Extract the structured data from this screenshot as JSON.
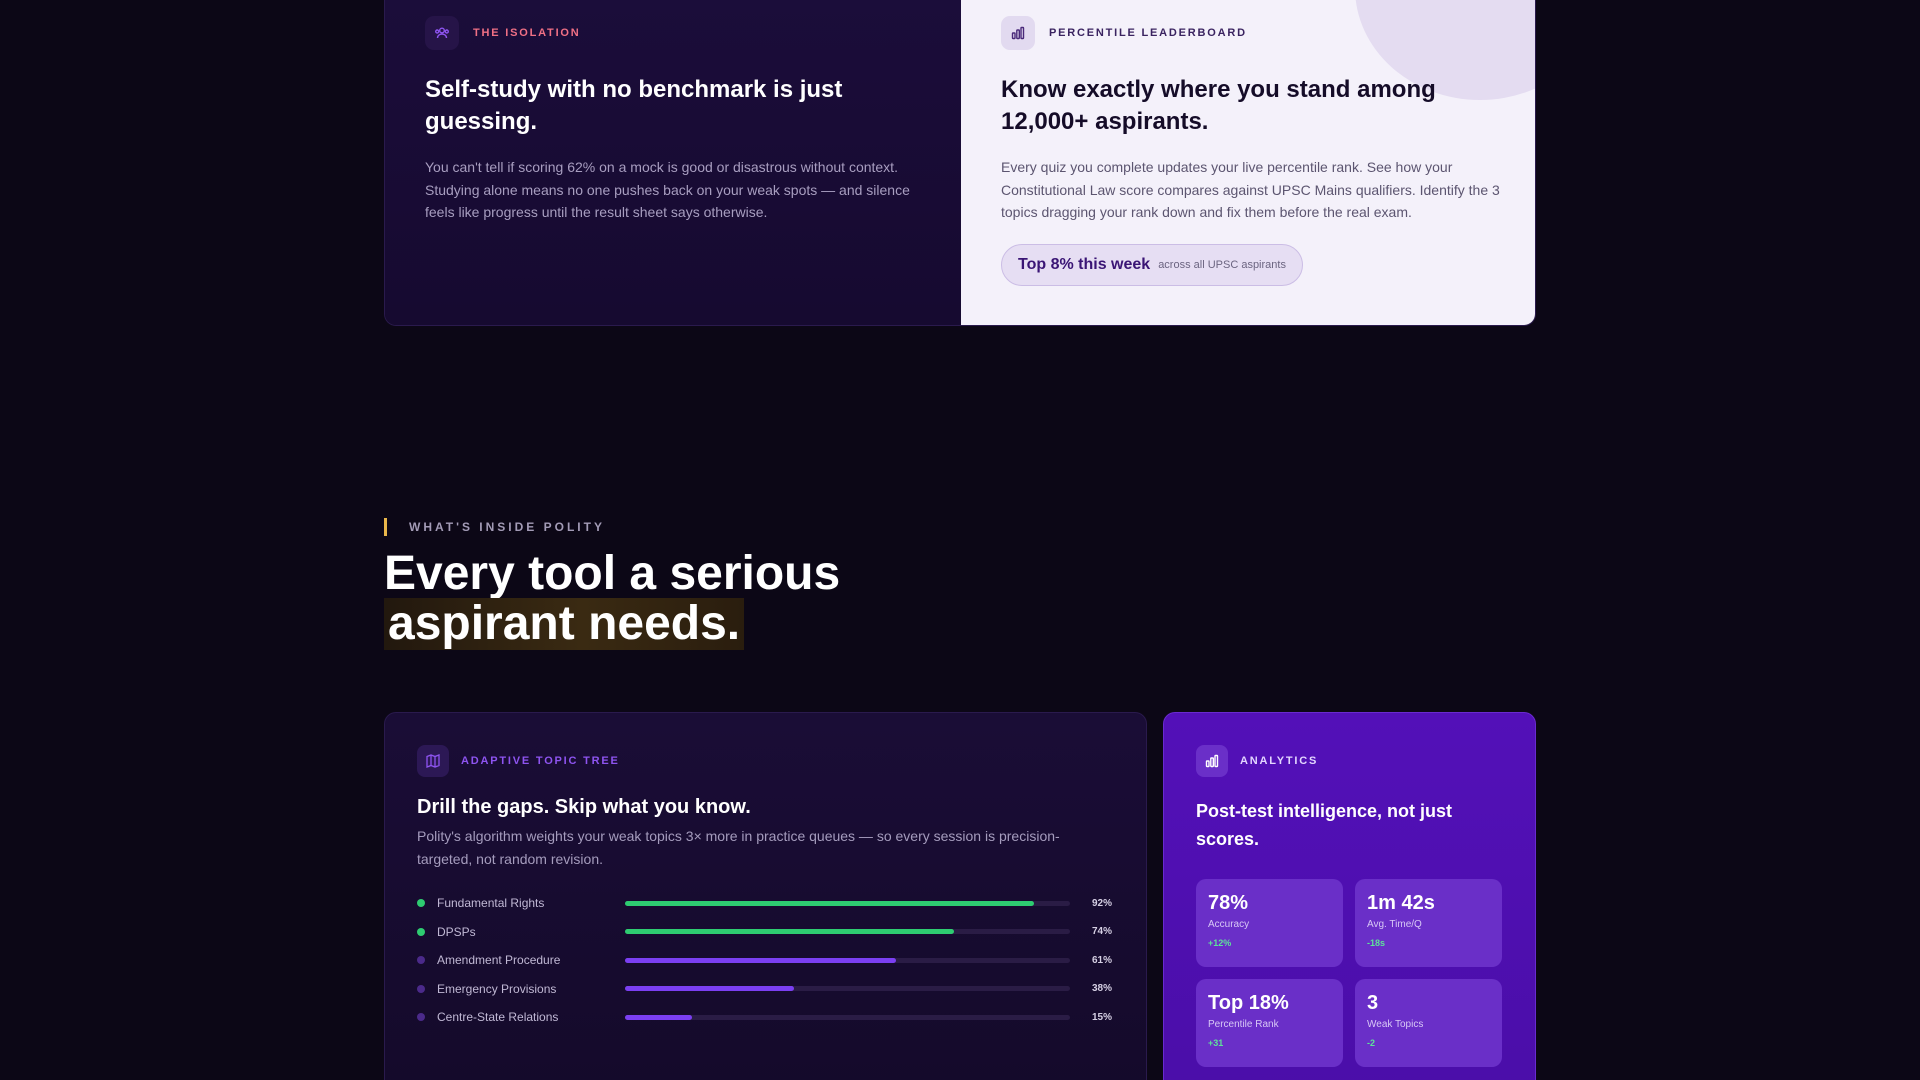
{
  "isolation": {
    "eyebrow": "THE ISOLATION",
    "title": "Self-study with no benchmark is just guessing.",
    "body": "You can't tell if scoring 62% on a mock is good or disastrous without context. Studying alone means no one pushes back on your weak spots — and silence feels like progress until the result sheet says otherwise.",
    "icon": "users-icon"
  },
  "leaderboard": {
    "eyebrow": "PERCENTILE LEADERBOARD",
    "title": "Know exactly where you stand among 12,000+ aspirants.",
    "body": "Every quiz you complete updates your live percentile rank. See how your Constitutional Law score compares against UPSC Mains qualifiers. Identify the 3 topics dragging your rank down and fix them before the real exam.",
    "pill_strong": "Top 8% this week",
    "pill_small": "across all UPSC aspirants",
    "icon": "bar-chart-icon"
  },
  "section": {
    "label": "WHAT'S INSIDE POLITY",
    "title_line1": "Every tool a serious",
    "title_line2": "aspirant needs."
  },
  "topic_tree": {
    "eyebrow": "ADAPTIVE TOPIC TREE",
    "title": "Drill the gaps. Skip what you know.",
    "desc": "Polity's algorithm weights your weak topics 3× more in practice queues — so every session is precision-targeted, not random revision.",
    "icon": "map-icon",
    "topics": [
      {
        "name": "Fundamental Rights",
        "value": 92,
        "pct": "92%",
        "color": "#2ecc71"
      },
      {
        "name": "DPSPs",
        "value": 74,
        "pct": "74%",
        "color": "#2ecc71"
      },
      {
        "name": "Amendment Procedure",
        "value": 61,
        "pct": "61%",
        "color": "#7b3ff2"
      },
      {
        "name": "Emergency Provisions",
        "value": 38,
        "pct": "38%",
        "color": "#7b3ff2"
      },
      {
        "name": "Centre-State Relations",
        "value": 15,
        "pct": "15%",
        "color": "#7b3ff2"
      }
    ],
    "dot_colors": [
      "#2ecc71",
      "#2ecc71",
      "#4b2a8a",
      "#4b2a8a",
      "#4b2a8a"
    ]
  },
  "analytics": {
    "eyebrow": "ANALYTICS",
    "title": "Post-test intelligence, not just scores.",
    "icon": "bar-chart-icon",
    "stats": [
      {
        "value": "78%",
        "label": "Accuracy",
        "delta": "+12%"
      },
      {
        "value": "1m 42s",
        "label": "Avg. Time/Q",
        "delta": "-18s"
      },
      {
        "value": "Top 18%",
        "label": "Percentile Rank",
        "delta": "+31"
      },
      {
        "value": "3",
        "label": "Weak Topics",
        "delta": "-2"
      }
    ]
  }
}
